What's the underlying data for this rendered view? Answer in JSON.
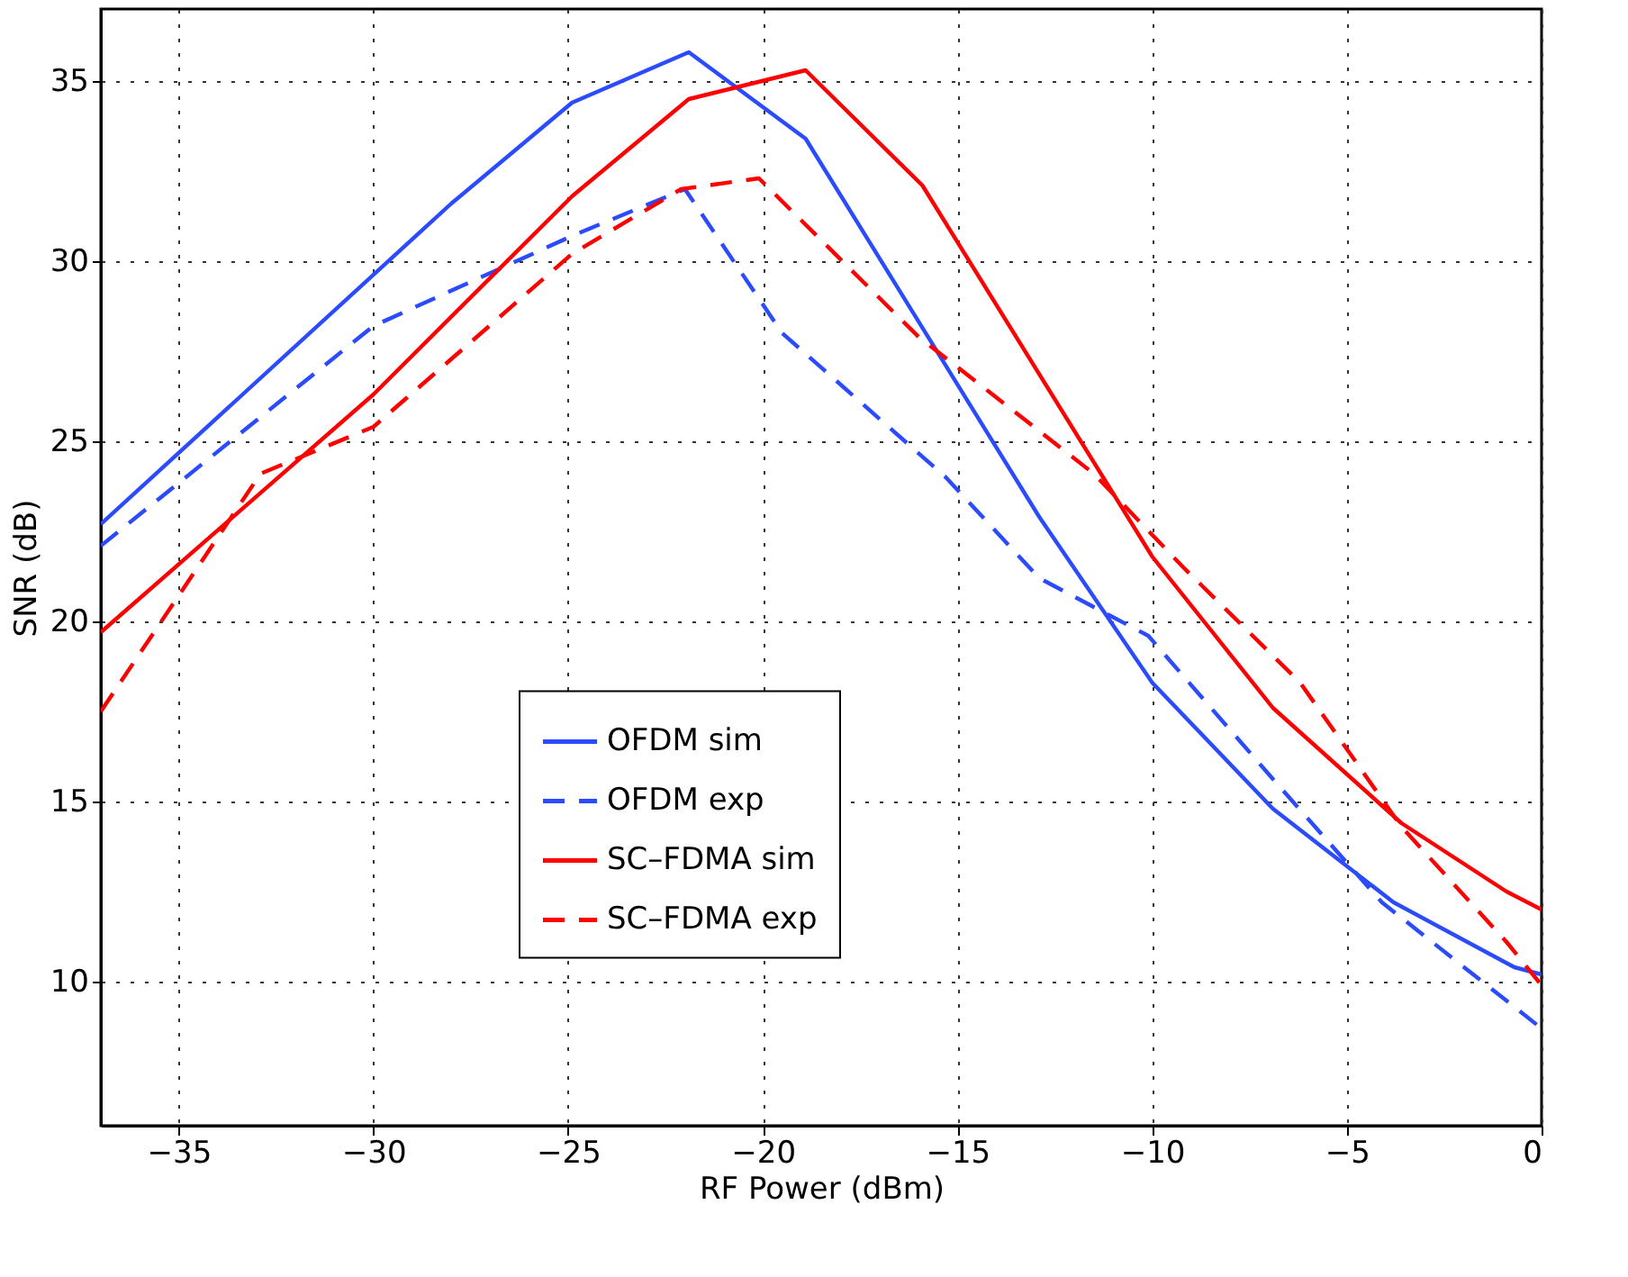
{
  "chart_data": {
    "type": "line",
    "xlabel": "RF Power (dBm)",
    "ylabel": "SNR (dB)",
    "xlim": [
      -37,
      0
    ],
    "xticks": [
      -35,
      -30,
      -25,
      -20,
      -15,
      -10,
      -5,
      0
    ],
    "ylim": [
      6,
      37
    ],
    "yticks": [
      10,
      15,
      20,
      25,
      30,
      35
    ],
    "grid": true,
    "legend": "center",
    "series": [
      {
        "name": "OFDM sim",
        "color": "#2b4bff",
        "line_style": "solid",
        "x": [
          -37,
          -28,
          -24.9,
          -21.9,
          -18.9,
          -12.9,
          -10,
          -6.9,
          -3.8,
          -0.7,
          0
        ],
        "values": [
          22.7,
          31.6,
          34.4,
          35.8,
          33.4,
          22.9,
          18.3,
          14.8,
          12.2,
          10.4,
          10.2
        ]
      },
      {
        "name": "OFDM exp",
        "color": "#2b4bff",
        "line_style": "dashed",
        "x": [
          -37,
          -30,
          -24.9,
          -22,
          -19.5,
          -15.3,
          -12.9,
          -10.1,
          -6.8,
          -4.1,
          -0.7,
          0
        ],
        "values": [
          22.1,
          28.2,
          30.7,
          32.0,
          28.0,
          24.0,
          21.2,
          19.6,
          15.5,
          12.2,
          9.3,
          8.7
        ]
      },
      {
        "name": "SC–FDMA sim",
        "color": "#ff0000",
        "line_style": "solid",
        "x": [
          -37,
          -30,
          -24.9,
          -21.9,
          -18.9,
          -15.9,
          -10,
          -6.9,
          -3.6,
          -0.9,
          0
        ],
        "values": [
          19.7,
          26.3,
          31.8,
          34.5,
          35.3,
          32.1,
          21.8,
          17.6,
          14.4,
          12.5,
          12.0
        ]
      },
      {
        "name": "SC–FDMA exp",
        "color": "#ff0000",
        "line_style": "dashed",
        "x": [
          -37,
          -32.9,
          -30,
          -24.9,
          -22.1,
          -20.1,
          -16,
          -14.1,
          -11.5,
          -9.2,
          -6.2,
          -3.6,
          -0.9,
          0
        ],
        "values": [
          17.5,
          24.1,
          25.4,
          30.2,
          32.0,
          32.3,
          27.9,
          26.3,
          24.1,
          21.5,
          18.3,
          14.3,
          11.1,
          9.9
        ]
      }
    ]
  }
}
